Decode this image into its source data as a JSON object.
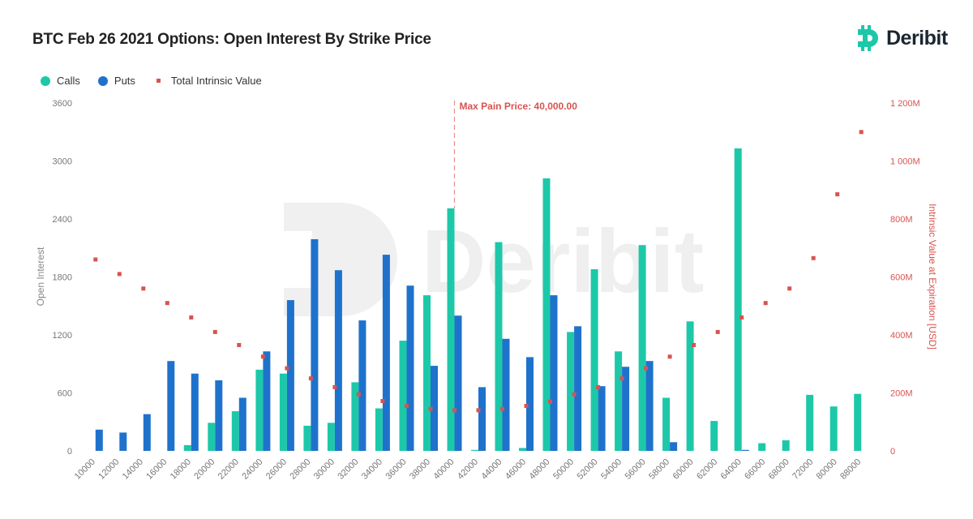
{
  "header": {
    "title": "BTC Feb 26 2021 Options: Open Interest By Strike Price",
    "logo_text": "Deribit"
  },
  "watermark_text": "Deribit",
  "colors": {
    "calls": "#1dc8a9",
    "puts": "#1f72cc",
    "intrinsic": "#d9534f",
    "brand": "#1dc8a9"
  },
  "chart_data": {
    "type": "bar",
    "categories": [
      "10000",
      "12000",
      "14000",
      "16000",
      "18000",
      "20000",
      "22000",
      "24000",
      "26000",
      "28000",
      "30000",
      "32000",
      "34000",
      "36000",
      "38000",
      "40000",
      "42000",
      "44000",
      "46000",
      "48000",
      "50000",
      "52000",
      "54000",
      "56000",
      "58000",
      "60000",
      "62000",
      "64000",
      "66000",
      "68000",
      "72000",
      "80000",
      "88000"
    ],
    "series": [
      {
        "name": "Calls",
        "type": "bar",
        "axis": "left",
        "values": [
          0,
          0,
          0,
          0,
          60,
          290,
          410,
          840,
          800,
          260,
          290,
          710,
          440,
          1140,
          1610,
          2510,
          10,
          2160,
          30,
          2820,
          1230,
          1880,
          1030,
          2130,
          550,
          1340,
          310,
          3130,
          80,
          110,
          580,
          460,
          590
        ]
      },
      {
        "name": "Puts",
        "type": "bar",
        "axis": "left",
        "values": [
          220,
          190,
          380,
          930,
          800,
          730,
          550,
          1030,
          1560,
          2190,
          1870,
          1350,
          2030,
          1710,
          880,
          1400,
          660,
          1160,
          970,
          1610,
          1290,
          670,
          870,
          930,
          90,
          0,
          0,
          10,
          0,
          0,
          0,
          0,
          0
        ]
      },
      {
        "name": "Total Intrinsic Value",
        "type": "scatter",
        "axis": "right",
        "unit": "M",
        "values": [
          660,
          610,
          560,
          510,
          460,
          410,
          365,
          325,
          285,
          250,
          220,
          195,
          172,
          155,
          145,
          140,
          140,
          145,
          155,
          170,
          195,
          220,
          250,
          285,
          325,
          365,
          410,
          460,
          510,
          560,
          665,
          885,
          1100
        ]
      }
    ],
    "ylabel": "Open Interest",
    "y2label": "Intrinsic Value at Expiration [USD]",
    "ylim": [
      0,
      3600
    ],
    "yticks": [
      "0",
      "600",
      "1200",
      "1800",
      "2400",
      "3000",
      "3600"
    ],
    "y2lim": [
      0,
      1200
    ],
    "y2ticks": [
      "0",
      "200M",
      "400M",
      "600M",
      "800M",
      "1 000M",
      "1 200M"
    ],
    "annotation": {
      "text": "Max Pain Price: 40,000.00",
      "category": "40000"
    },
    "legend_position": "top-left",
    "grid": false
  }
}
